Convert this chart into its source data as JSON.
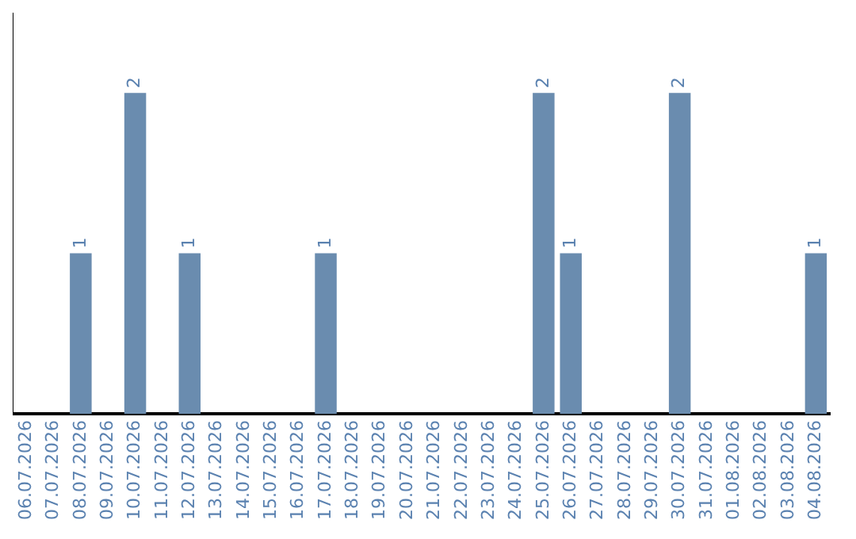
{
  "chart_data": {
    "type": "bar",
    "categories": [
      "06.07.2026",
      "07.07.2026",
      "08.07.2026",
      "09.07.2026",
      "10.07.2026",
      "11.07.2026",
      "12.07.2026",
      "13.07.2026",
      "14.07.2026",
      "15.07.2026",
      "16.07.2026",
      "17.07.2026",
      "18.07.2026",
      "19.07.2026",
      "20.07.2026",
      "21.07.2026",
      "22.07.2026",
      "23.07.2026",
      "24.07.2026",
      "25.07.2026",
      "26.07.2026",
      "27.07.2026",
      "28.07.2026",
      "29.07.2026",
      "30.07.2026",
      "31.07.2026",
      "01.08.2026",
      "02.08.2026",
      "03.08.2026",
      "04.08.2026"
    ],
    "values": [
      0,
      0,
      1,
      0,
      2,
      0,
      1,
      0,
      0,
      0,
      0,
      1,
      0,
      0,
      0,
      0,
      0,
      0,
      0,
      2,
      1,
      0,
      0,
      0,
      2,
      0,
      0,
      0,
      0,
      1
    ],
    "value_labels": [
      null,
      null,
      "1",
      null,
      "2",
      null,
      "1",
      null,
      null,
      null,
      null,
      "1",
      null,
      null,
      null,
      null,
      null,
      null,
      null,
      "2",
      "1",
      null,
      null,
      null,
      "2",
      null,
      null,
      null,
      null,
      "1"
    ],
    "color": "#6a8caf",
    "grid": false,
    "legend": false
  }
}
